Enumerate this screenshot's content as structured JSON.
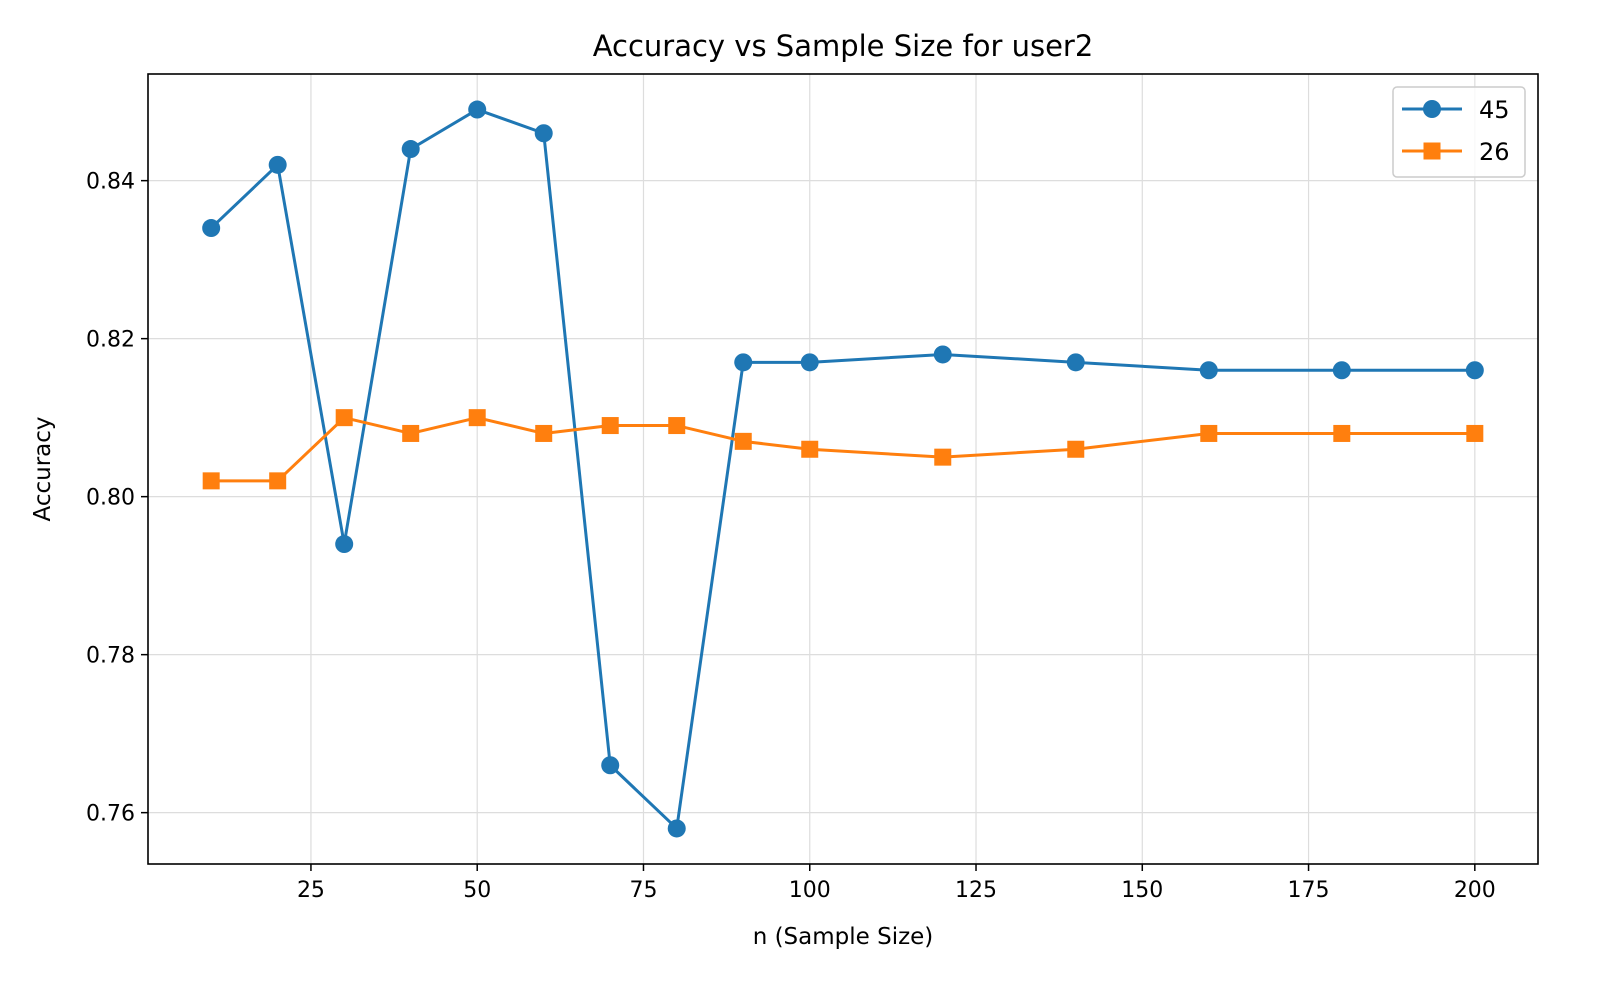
{
  "chart_data": {
    "type": "line",
    "title": "Accuracy vs Sample Size for user2",
    "xlabel": "n (Sample Size)",
    "ylabel": "Accuracy",
    "xlim": [
      0.5,
      209.5
    ],
    "ylim": [
      0.7535,
      0.8535
    ],
    "xticks": [
      25,
      50,
      75,
      100,
      125,
      150,
      175,
      200
    ],
    "xtick_labels": [
      "25",
      "50",
      "75",
      "100",
      "125",
      "150",
      "175",
      "200"
    ],
    "yticks": [
      0.76,
      0.78,
      0.8,
      0.82,
      0.84
    ],
    "ytick_labels": [
      "0.76",
      "0.78",
      "0.80",
      "0.82",
      "0.84"
    ],
    "grid": true,
    "legend_position": "top-right",
    "x": [
      10,
      20,
      30,
      40,
      50,
      60,
      70,
      80,
      90,
      100,
      120,
      140,
      160,
      180,
      200
    ],
    "series": [
      {
        "name": "45",
        "color": "#1f77b4",
        "marker": "circle",
        "values": [
          0.834,
          0.842,
          0.794,
          0.844,
          0.849,
          0.846,
          0.766,
          0.758,
          0.817,
          0.817,
          0.818,
          0.817,
          0.816,
          0.816,
          0.816
        ]
      },
      {
        "name": "26",
        "color": "#ff7f0e",
        "marker": "square",
        "values": [
          0.802,
          0.802,
          0.81,
          0.808,
          0.81,
          0.808,
          0.809,
          0.809,
          0.807,
          0.806,
          0.805,
          0.806,
          0.808,
          0.808,
          0.808
        ]
      }
    ]
  }
}
